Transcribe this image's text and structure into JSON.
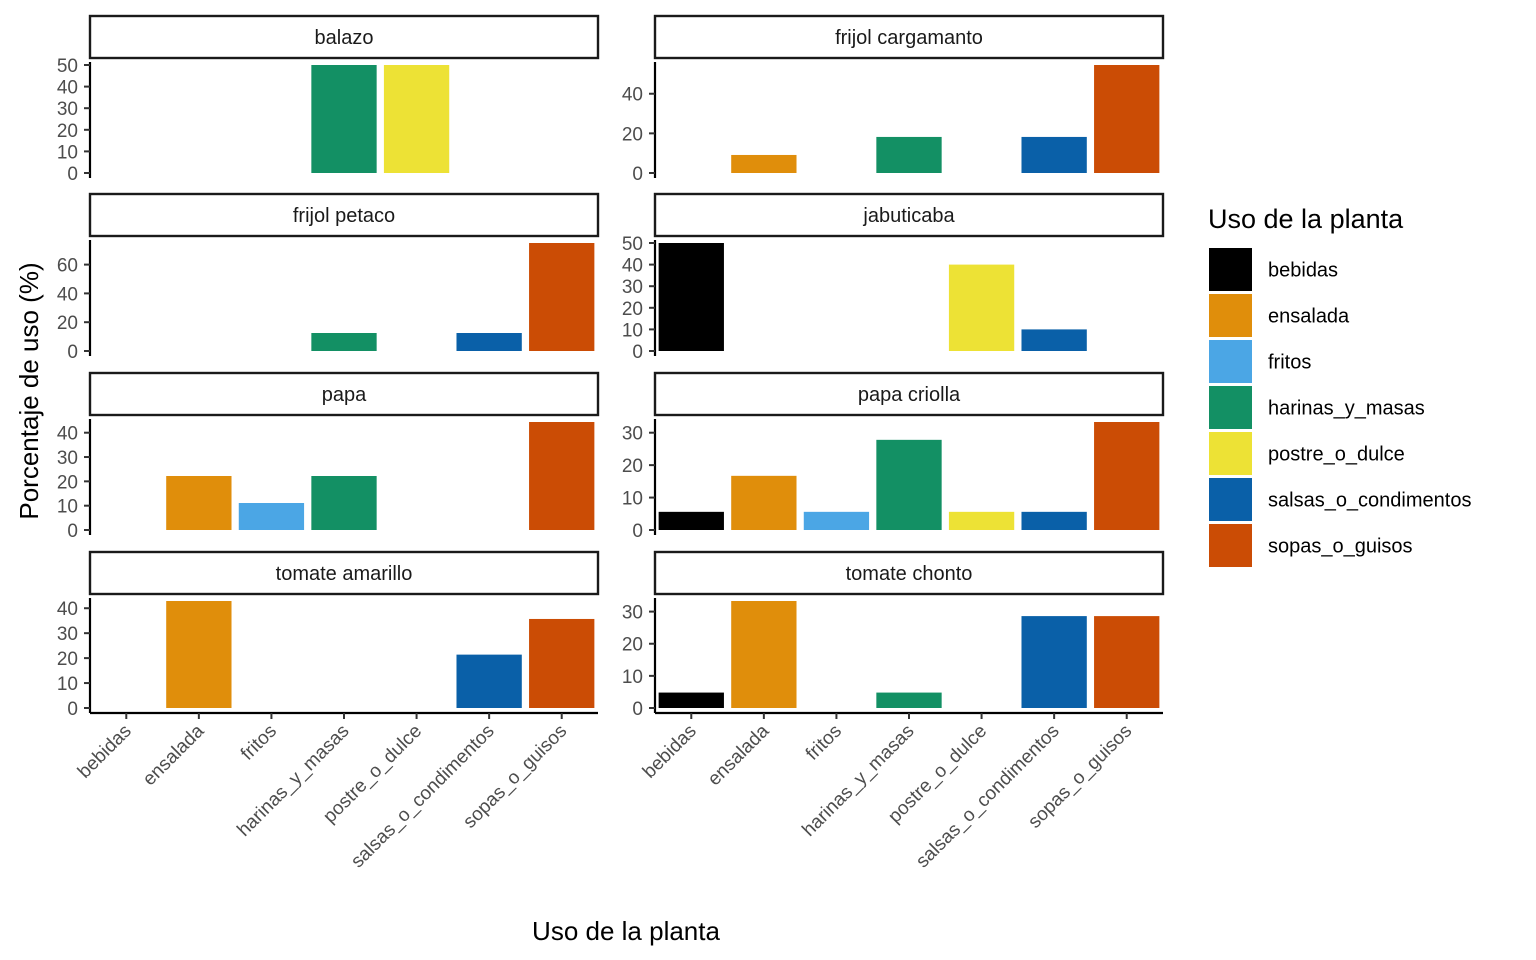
{
  "chart_data": {
    "type": "bar",
    "xlabel": "Uso de la planta",
    "ylabel": "Porcentaje de uso (%)",
    "categories": [
      "bebidas",
      "ensalada",
      "fritos",
      "harinas_y_masas",
      "postre_o_dulce",
      "salsas_o_condimentos",
      "sopas_o_guisos"
    ],
    "legend": {
      "title": "Uso de la planta",
      "placement": "right",
      "items": [
        {
          "label": "bebidas",
          "color": "#000000"
        },
        {
          "label": "ensalada",
          "color": "#E08E0B"
        },
        {
          "label": "fritos",
          "color": "#4BA6E5"
        },
        {
          "label": "harinas_y_masas",
          "color": "#139064"
        },
        {
          "label": "postre_o_dulce",
          "color": "#EDE235"
        },
        {
          "label": "salsas_o_condimentos",
          "color": "#0A60A8"
        },
        {
          "label": "sopas_o_guisos",
          "color": "#CB4C05"
        }
      ]
    },
    "grid": false,
    "panels": [
      {
        "title": "balazo",
        "ylim": [
          0,
          50
        ],
        "yticks": [
          0,
          10,
          20,
          30,
          40,
          50
        ],
        "values": [
          null,
          null,
          null,
          50,
          50,
          null,
          null
        ]
      },
      {
        "title": "frijol cargamanto",
        "ylim": [
          0,
          54.5
        ],
        "yticks": [
          0,
          20,
          40
        ],
        "values": [
          null,
          9.1,
          null,
          18.2,
          null,
          18.2,
          54.5
        ]
      },
      {
        "title": "frijol petaco",
        "ylim": [
          0,
          75
        ],
        "yticks": [
          0,
          20,
          40,
          60
        ],
        "values": [
          null,
          null,
          null,
          12.5,
          null,
          12.5,
          75
        ]
      },
      {
        "title": "jabuticaba",
        "ylim": [
          0,
          50
        ],
        "yticks": [
          0,
          10,
          20,
          30,
          40,
          50
        ],
        "values": [
          50,
          null,
          null,
          null,
          40,
          10,
          null
        ]
      },
      {
        "title": "papa",
        "ylim": [
          0,
          44.4
        ],
        "yticks": [
          0,
          10,
          20,
          30,
          40
        ],
        "values": [
          null,
          22.2,
          11.1,
          22.2,
          null,
          null,
          44.4
        ]
      },
      {
        "title": "papa criolla",
        "ylim": [
          0,
          33.3
        ],
        "yticks": [
          0,
          10,
          20,
          30
        ],
        "values": [
          5.6,
          16.7,
          5.6,
          27.8,
          5.6,
          5.6,
          33.3
        ]
      },
      {
        "title": "tomate amarillo",
        "ylim": [
          0,
          42.9
        ],
        "yticks": [
          0,
          10,
          20,
          30,
          40
        ],
        "values": [
          null,
          42.9,
          null,
          null,
          null,
          21.4,
          35.7
        ]
      },
      {
        "title": "tomate chonto",
        "ylim": [
          0,
          33.3
        ],
        "yticks": [
          0,
          10,
          20,
          30
        ],
        "values": [
          4.8,
          33.3,
          null,
          4.8,
          null,
          28.6,
          28.6
        ]
      }
    ]
  }
}
